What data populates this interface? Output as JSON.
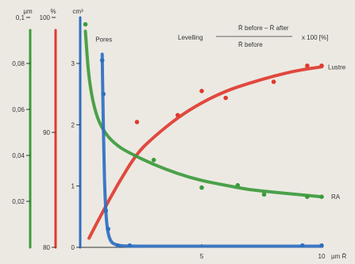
{
  "chart_data": {
    "type": "line",
    "formula": {
      "lhs": "Levelling",
      "numerator": "R̄ before – R̄ after",
      "denominator": "R̄ before",
      "suffix": "x 100 [%]"
    },
    "x_axis": {
      "unit": "µm R̄",
      "range": [
        0,
        10
      ],
      "ticks": [
        {
          "value": 5,
          "label": "5"
        },
        {
          "value": 10,
          "label": "10"
        }
      ]
    },
    "y_axes": [
      {
        "id": "um",
        "unit": "µm",
        "color": "#3c9a3c",
        "range": [
          0,
          0.1
        ],
        "ticks": [
          {
            "value": 0.1,
            "label": "0,1"
          },
          {
            "value": 0.08,
            "label": "0,08"
          },
          {
            "value": 0.06,
            "label": "0,06"
          },
          {
            "value": 0.04,
            "label": "0,04"
          },
          {
            "value": 0.02,
            "label": "0,02"
          }
        ]
      },
      {
        "id": "pct",
        "unit": "%",
        "color": "#e03a30",
        "range": [
          80,
          100
        ],
        "ticks": [
          {
            "value": 100,
            "label": "100"
          },
          {
            "value": 90,
            "label": "90"
          },
          {
            "value": 80,
            "label": "80"
          }
        ]
      },
      {
        "id": "cm3",
        "unit": "cm³",
        "color": "#2f6fc0",
        "range": [
          0,
          3.75
        ],
        "ticks": [
          {
            "value": 3,
            "label": "3"
          },
          {
            "value": 2,
            "label": "2"
          },
          {
            "value": 1,
            "label": "1"
          },
          {
            "value": 0,
            "label": "0"
          }
        ]
      }
    ],
    "series": [
      {
        "name": "Lustre",
        "axis": "pct",
        "color": "#e03a30",
        "curve": [
          [
            0.3,
            80.8
          ],
          [
            0.8,
            82.8
          ],
          [
            1.5,
            85.5
          ],
          [
            2.3,
            88.2
          ],
          [
            3.0,
            89.6
          ],
          [
            4.0,
            91.3
          ],
          [
            5.0,
            92.6
          ],
          [
            6.0,
            93.6
          ],
          [
            7.0,
            94.3
          ],
          [
            8.0,
            94.9
          ],
          [
            9.0,
            95.4
          ],
          [
            10.0,
            95.7
          ]
        ],
        "points": [
          [
            2.3,
            90.9
          ],
          [
            4.0,
            91.5
          ],
          [
            5.0,
            93.6
          ],
          [
            6.0,
            93.0
          ],
          [
            8.0,
            94.4
          ],
          [
            9.4,
            95.8
          ],
          [
            10.0,
            95.8
          ]
        ]
      },
      {
        "name": "RA",
        "axis": "um",
        "color": "#3c9a3c",
        "curve": [
          [
            0.15,
            0.094
          ],
          [
            0.3,
            0.072
          ],
          [
            0.6,
            0.057
          ],
          [
            1.0,
            0.049
          ],
          [
            1.5,
            0.044
          ],
          [
            2.0,
            0.041
          ],
          [
            3.0,
            0.036
          ],
          [
            4.0,
            0.032
          ],
          [
            5.0,
            0.029
          ],
          [
            6.0,
            0.027
          ],
          [
            7.0,
            0.025
          ],
          [
            8.0,
            0.024
          ],
          [
            9.0,
            0.023
          ],
          [
            10.0,
            0.022
          ]
        ],
        "points": [
          [
            0.15,
            0.097
          ],
          [
            3.0,
            0.038
          ],
          [
            5.0,
            0.026
          ],
          [
            6.5,
            0.027
          ],
          [
            7.6,
            0.023
          ],
          [
            9.4,
            0.022
          ],
          [
            10.0,
            0.022
          ]
        ]
      },
      {
        "name": "Pores",
        "axis": "cm3",
        "color": "#2f6fc0",
        "curve": [
          [
            0.85,
            3.15
          ],
          [
            0.88,
            2.4
          ],
          [
            0.92,
            1.5
          ],
          [
            0.97,
            0.8
          ],
          [
            1.05,
            0.3
          ],
          [
            1.2,
            0.08
          ],
          [
            1.5,
            0.03
          ],
          [
            2.0,
            0.02
          ],
          [
            4.0,
            0.02
          ],
          [
            6.0,
            0.02
          ],
          [
            8.0,
            0.02
          ],
          [
            10.0,
            0.02
          ]
        ],
        "points": [
          [
            0.85,
            3.05
          ],
          [
            0.9,
            2.5
          ],
          [
            1.0,
            0.6
          ],
          [
            1.1,
            0.3
          ],
          [
            1.5,
            0.03
          ],
          [
            2.0,
            0.03
          ],
          [
            9.2,
            0.03
          ],
          [
            10.0,
            0.03
          ]
        ]
      }
    ]
  }
}
